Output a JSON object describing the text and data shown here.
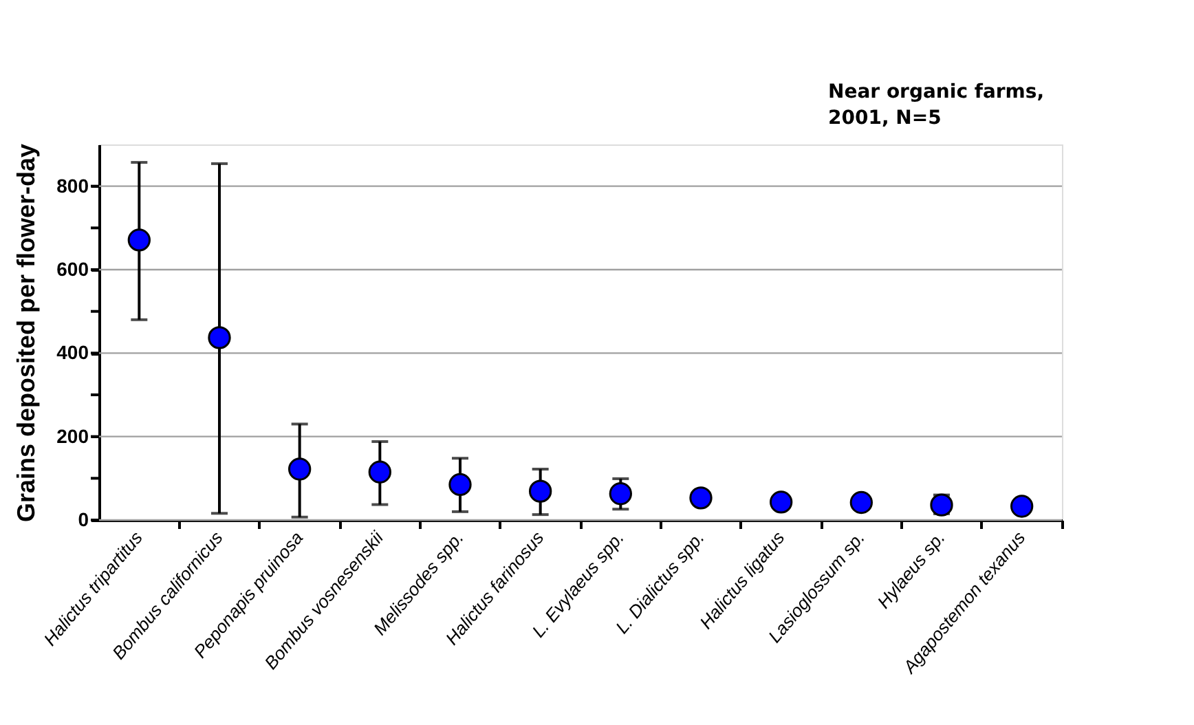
{
  "chart_data": {
    "type": "scatter",
    "ylabel": "Grains deposited per flower-day",
    "annotations": [
      "Near organic farms,\n2001, N=5"
    ],
    "categories": [
      "Halictus tripartitus",
      "Bombus californicus",
      "Peponapis pruinosa",
      "Bombus vosnesenskii",
      "Melissodes spp.",
      "Halictus farinosus",
      "L. Evylaeus spp.",
      "L. Dialictus spp.",
      "Halictus ligatus",
      "Lasioglossum sp.",
      "Hylaeus sp.",
      "Agapostemon texanus"
    ],
    "series": [
      {
        "color": "#0000ff",
        "values": [
          671,
          437,
          122,
          115,
          85,
          69,
          63,
          53,
          43,
          42,
          36,
          33
        ],
        "errors": [
          [
            480,
            857
          ],
          [
            16,
            854
          ],
          [
            7,
            230
          ],
          [
            37,
            188
          ],
          [
            20,
            148
          ],
          [
            13,
            122
          ],
          [
            26,
            99
          ],
          null,
          null,
          null,
          [
            15,
            60
          ],
          null
        ]
      }
    ],
    "ylim": [
      0,
      900
    ],
    "yticks": [
      0,
      {
        "value": 100,
        "label": null
      },
      200,
      {
        "value": 300,
        "label": null
      },
      400,
      {
        "value": 500,
        "label": null
      },
      600,
      {
        "value": 700,
        "label": null
      },
      800
    ],
    "grid": "y",
    "marker": "circle"
  }
}
